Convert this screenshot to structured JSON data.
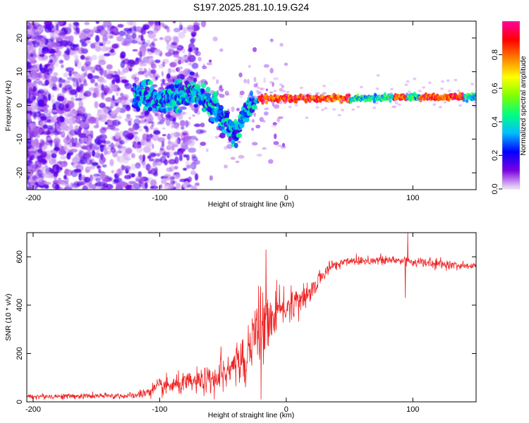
{
  "title": "S197.2025.281.10.19.G24",
  "chart_data": [
    {
      "type": "heatmap",
      "name": "spectrogram",
      "xlabel": "Height of straight line (km)",
      "ylabel": "Frequency (Hz)",
      "xlim": [
        -205,
        150
      ],
      "ylim": [
        -25,
        25
      ],
      "xticks": [
        -200,
        -100,
        0,
        100
      ],
      "yticks": [
        -20,
        -10,
        0,
        10,
        20
      ],
      "colorbar": {
        "label": "Normalized spectral amplitude",
        "range": [
          0,
          1
        ],
        "ticks": [
          0.0,
          0.2,
          0.4,
          0.6,
          0.8
        ],
        "tick_labels": [
          "0.0",
          "0.2",
          "0.4",
          "0.6",
          "0.8"
        ],
        "colormap": [
          "#f2e6fa",
          "#7a00e0",
          "#0000ff",
          "#00bfff",
          "#00ff80",
          "#80ff00",
          "#ffff00",
          "#ff8000",
          "#ff0000",
          "#ff00a0"
        ]
      },
      "ridge": {
        "description": "scattered noise below -120 km; signal track converging to ~2 Hz",
        "points": [
          {
            "x": -115,
            "f": 3
          },
          {
            "x": -100,
            "f": 1
          },
          {
            "x": -85,
            "f": 3
          },
          {
            "x": -75,
            "f": 4
          },
          {
            "x": -65,
            "f": 2
          },
          {
            "x": -55,
            "f": -2
          },
          {
            "x": -45,
            "f": -6
          },
          {
            "x": -40,
            "f": -9
          },
          {
            "x": -35,
            "f": -4
          },
          {
            "x": -28,
            "f": 0
          },
          {
            "x": -20,
            "f": 2
          },
          {
            "x": 0,
            "f": 2
          },
          {
            "x": 50,
            "f": 2
          },
          {
            "x": 100,
            "f": 2.5
          },
          {
            "x": 150,
            "f": 2.5
          }
        ],
        "strong_segments": [
          [
            -22,
            50
          ],
          [
            85,
            95
          ],
          [
            105,
            140
          ]
        ]
      }
    },
    {
      "type": "line",
      "name": "snr",
      "xlabel": "Height of straight line (km)",
      "ylabel": "SNR (10 * v/v)",
      "xlim": [
        -205,
        150
      ],
      "ylim": [
        0,
        700
      ],
      "xticks": [
        -200,
        -100,
        0,
        100
      ],
      "yticks": [
        0,
        200,
        400,
        600
      ],
      "color": "#ee2222",
      "envelope": [
        {
          "x": -205,
          "mean": 22,
          "noise": 10
        },
        {
          "x": -120,
          "mean": 25,
          "noise": 12
        },
        {
          "x": -110,
          "mean": 40,
          "noise": 22
        },
        {
          "x": -100,
          "mean": 60,
          "noise": 35
        },
        {
          "x": -80,
          "mean": 75,
          "noise": 40
        },
        {
          "x": -60,
          "mean": 90,
          "noise": 50
        },
        {
          "x": -45,
          "mean": 120,
          "noise": 70
        },
        {
          "x": -35,
          "mean": 180,
          "noise": 100
        },
        {
          "x": -25,
          "mean": 260,
          "noise": 120
        },
        {
          "x": -15,
          "mean": 330,
          "noise": 100
        },
        {
          "x": -5,
          "mean": 380,
          "noise": 70
        },
        {
          "x": 5,
          "mean": 400,
          "noise": 60
        },
        {
          "x": 15,
          "mean": 420,
          "noise": 50
        },
        {
          "x": 25,
          "mean": 500,
          "noise": 30
        },
        {
          "x": 35,
          "mean": 560,
          "noise": 25
        },
        {
          "x": 50,
          "mean": 585,
          "noise": 20
        },
        {
          "x": 90,
          "mean": 585,
          "noise": 22
        },
        {
          "x": 120,
          "mean": 570,
          "noise": 18
        },
        {
          "x": 150,
          "mean": 560,
          "noise": 15
        }
      ],
      "spikes": [
        {
          "x": -16,
          "y": 630
        },
        {
          "x": -20,
          "y": 10
        },
        {
          "x": -22,
          "y": 480
        },
        {
          "x": 96,
          "y": 700
        },
        {
          "x": 94,
          "y": 430
        }
      ]
    }
  ]
}
